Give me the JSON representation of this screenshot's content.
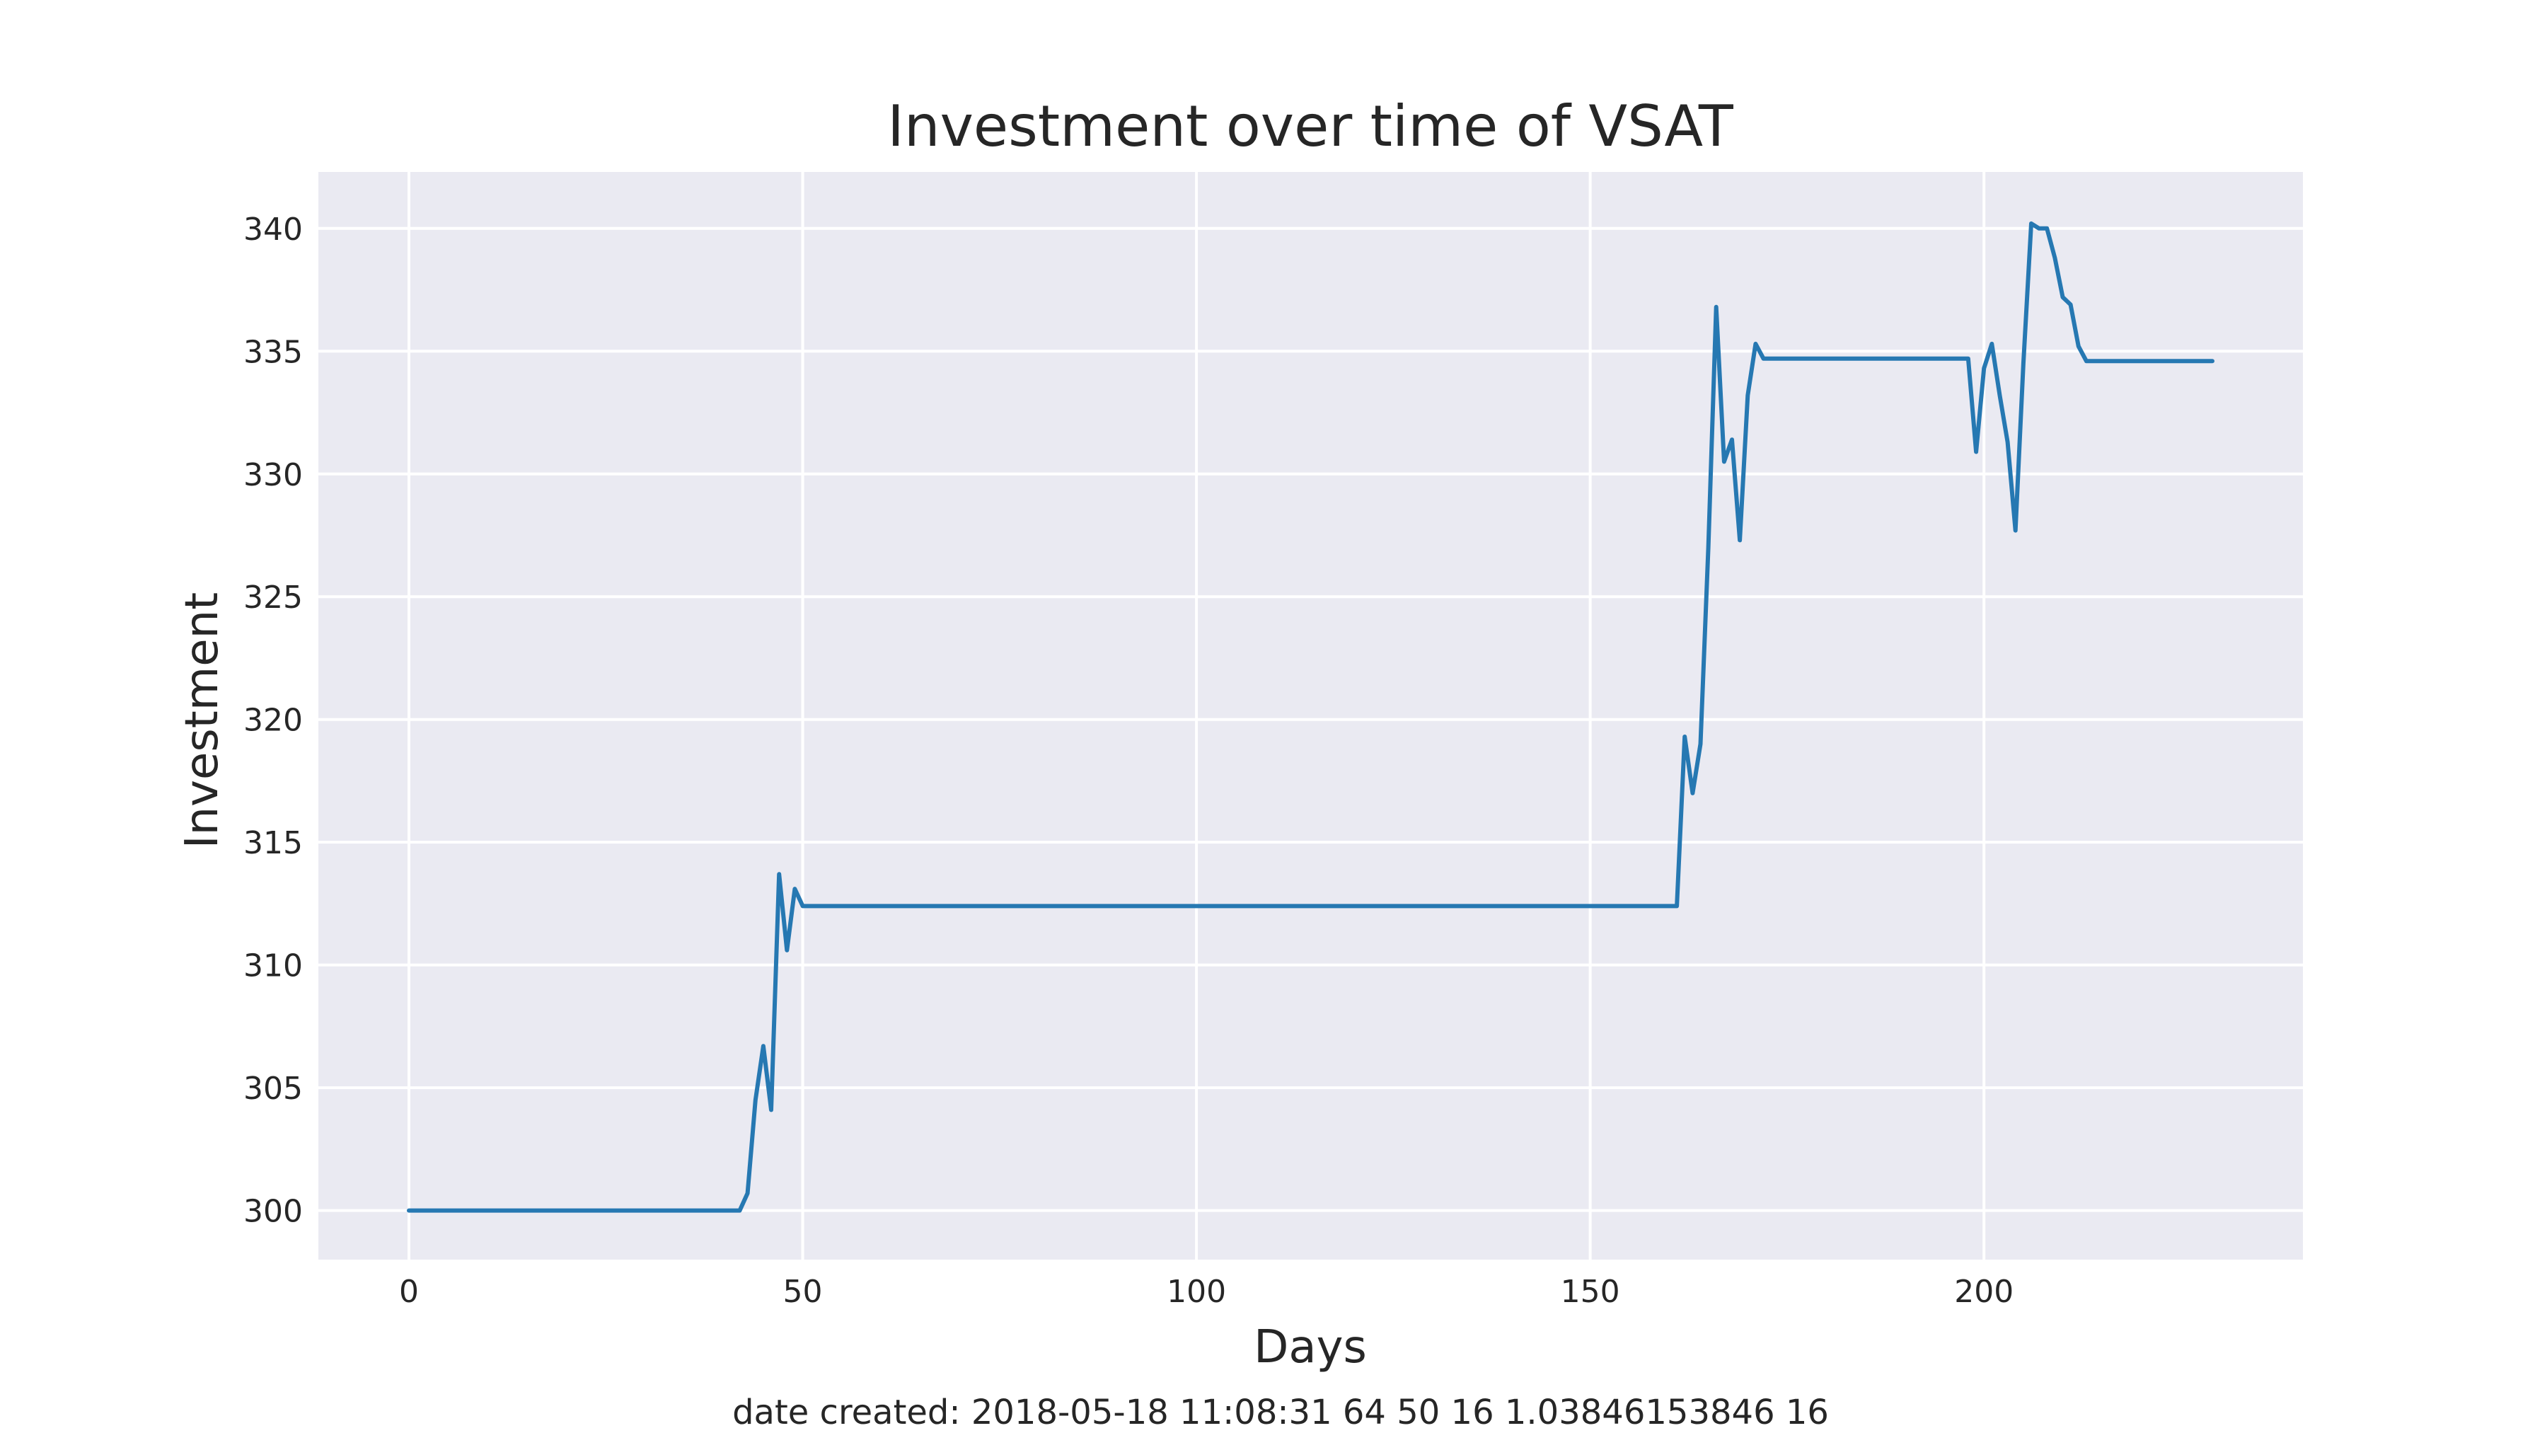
{
  "chart_data": {
    "type": "line",
    "title": "Investment over time of VSAT",
    "xlabel": "Days",
    "ylabel": "Investment",
    "xlim": [
      -11.5,
      240.5
    ],
    "ylim": [
      298,
      342.3
    ],
    "xticks": [
      0,
      50,
      100,
      150,
      200
    ],
    "yticks": [
      300,
      305,
      310,
      315,
      320,
      325,
      330,
      335,
      340
    ],
    "grid": true,
    "legend": "none",
    "series_color": "#2678b2",
    "plot_background": "#eaeaf2",
    "series": [
      {
        "x": [
          0,
          42,
          43,
          44,
          45,
          46,
          47,
          48,
          49,
          50,
          161,
          162,
          163,
          164,
          165,
          166,
          167,
          168,
          169,
          170,
          171,
          172,
          198,
          199,
          200,
          201,
          202,
          203,
          204,
          205,
          206,
          207,
          208,
          209,
          210,
          211,
          212,
          213,
          229
        ],
        "y": [
          300.0,
          300.0,
          300.7,
          304.5,
          306.7,
          304.1,
          313.7,
          310.6,
          313.1,
          312.4,
          312.4,
          319.3,
          317.0,
          319.0,
          327.0,
          336.8,
          330.5,
          331.4,
          327.3,
          333.2,
          335.3,
          334.7,
          334.7,
          330.9,
          334.3,
          335.3,
          333.2,
          331.3,
          327.7,
          334.5,
          340.2,
          340.0,
          340.0,
          338.8,
          337.2,
          336.9,
          335.2,
          334.6,
          334.6
        ]
      }
    ]
  },
  "footer_text": "date created: 2018-05-18 11:08:31 64 50 16 1.03846153846 16"
}
